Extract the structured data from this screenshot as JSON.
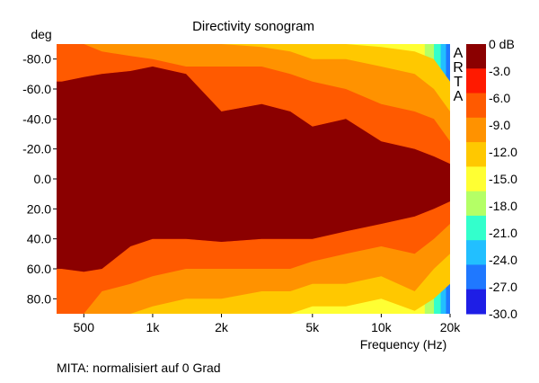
{
  "chart_data": {
    "type": "heatmap",
    "title": "Directivity sonogram",
    "ylabel": "deg",
    "xlabel": "Frequency (Hz)",
    "x_scale": "log",
    "xlim": [
      380,
      20000
    ],
    "ylim": [
      90,
      -90
    ],
    "x_ticks": [
      {
        "value": 500,
        "label": "500"
      },
      {
        "value": 1000,
        "label": "1k"
      },
      {
        "value": 2000,
        "label": "2k"
      },
      {
        "value": 5000,
        "label": "5k"
      },
      {
        "value": 10000,
        "label": "10k"
      },
      {
        "value": 20000,
        "label": "20k"
      }
    ],
    "y_ticks": [
      {
        "value": -80,
        "label": "-80.0"
      },
      {
        "value": -60,
        "label": "-60.0"
      },
      {
        "value": -40,
        "label": "-40.0"
      },
      {
        "value": -20,
        "label": "-20.0"
      },
      {
        "value": 0,
        "label": "0.0"
      },
      {
        "value": 20,
        "label": "20.0"
      },
      {
        "value": 40,
        "label": "40.0"
      },
      {
        "value": 60,
        "label": "60.0"
      },
      {
        "value": 80,
        "label": "80.0"
      }
    ],
    "colorbar": {
      "labels": [
        "0 dB",
        "-3.0",
        "-6.0",
        "-9.0",
        "-12.0",
        "-15.0",
        "-18.0",
        "-21.0",
        "-24.0",
        "-27.0",
        "-30.0"
      ],
      "colors": [
        "#8b0000",
        "#ff1a00",
        "#ff5a00",
        "#ff9200",
        "#ffc800",
        "#ffff33",
        "#b4ff66",
        "#33ffcc",
        "#22bfff",
        "#1f78ff",
        "#1e1ee6"
      ]
    },
    "watermark": "ARTA",
    "contours": [
      {
        "level_db": -3,
        "top_boundary_deg": [
          -65,
          -68,
          -70,
          -72,
          -75,
          -70,
          -45,
          -50,
          -45,
          -35,
          -40,
          -25,
          -20,
          -15,
          -10
        ],
        "bottom_boundary_deg": [
          60,
          62,
          60,
          45,
          40,
          40,
          42,
          40,
          40,
          40,
          35,
          30,
          25,
          20,
          15
        ]
      },
      {
        "level_db": -6,
        "top_boundary_deg": [
          -90,
          -90,
          -85,
          -82,
          -80,
          -75,
          -75,
          -75,
          -70,
          -65,
          -60,
          -50,
          -45,
          -40,
          -25
        ],
        "bottom_boundary_deg": [
          90,
          90,
          75,
          70,
          65,
          60,
          60,
          60,
          60,
          55,
          50,
          45,
          50,
          40,
          30
        ]
      },
      {
        "level_db": -9,
        "top_boundary_deg": [
          -90,
          -90,
          -90,
          -90,
          -90,
          -90,
          -90,
          -88,
          -85,
          -80,
          -80,
          -75,
          -70,
          -60,
          -45
        ],
        "bottom_boundary_deg": [
          90,
          90,
          90,
          90,
          85,
          80,
          80,
          75,
          75,
          70,
          70,
          65,
          75,
          60,
          50
        ]
      },
      {
        "level_db": -12,
        "top_boundary_deg": [
          -90,
          -90,
          -90,
          -90,
          -90,
          -90,
          -90,
          -90,
          -90,
          -90,
          -90,
          -88,
          -85,
          -80,
          -65
        ],
        "bottom_boundary_deg": [
          90,
          90,
          90,
          90,
          90,
          90,
          90,
          90,
          90,
          85,
          85,
          80,
          88,
          80,
          70
        ]
      }
    ],
    "contour_frequencies_hz": [
      400,
      500,
      600,
      800,
      1000,
      1400,
      2000,
      3000,
      4000,
      5000,
      7000,
      10000,
      14000,
      17000,
      20000
    ]
  },
  "footer_note": "MITA: normalisiert auf 0 Grad"
}
